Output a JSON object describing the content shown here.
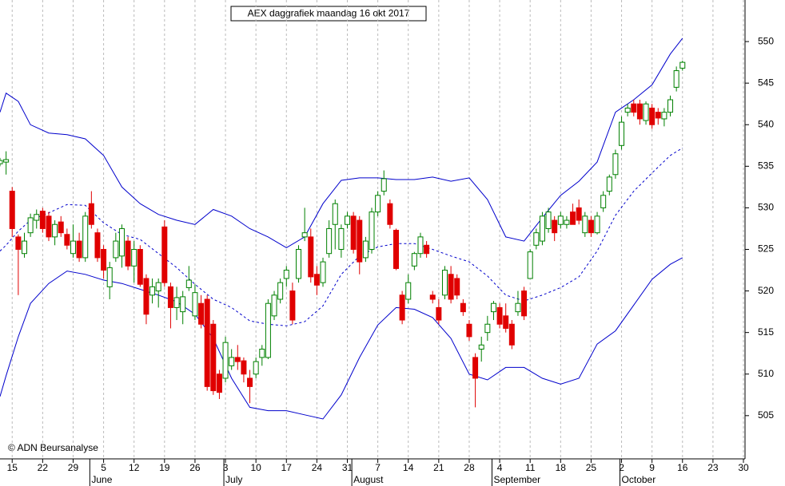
{
  "chart_data": {
    "type": "candlestick",
    "title": "AEX daggrafiek maandag 16 okt 2017",
    "annotation": "© ADN Beursanalyse",
    "up_color": "#008000",
    "down_color": "#e00000",
    "band_color": "#0000cc",
    "x": [
      "2017-05-11",
      "2017-05-12",
      "2017-05-15",
      "2017-05-16",
      "2017-05-17",
      "2017-05-18",
      "2017-05-19",
      "2017-05-22",
      "2017-05-23",
      "2017-05-24",
      "2017-05-25",
      "2017-05-26",
      "2017-05-29",
      "2017-05-30",
      "2017-05-31",
      "2017-06-01",
      "2017-06-02",
      "2017-06-05",
      "2017-06-06",
      "2017-06-07",
      "2017-06-08",
      "2017-06-09",
      "2017-06-12",
      "2017-06-13",
      "2017-06-14",
      "2017-06-15",
      "2017-06-16",
      "2017-06-19",
      "2017-06-20",
      "2017-06-21",
      "2017-06-22",
      "2017-06-23",
      "2017-06-26",
      "2017-06-27",
      "2017-06-28",
      "2017-06-29",
      "2017-06-30",
      "2017-07-03",
      "2017-07-04",
      "2017-07-05",
      "2017-07-06",
      "2017-07-07",
      "2017-07-10",
      "2017-07-11",
      "2017-07-12",
      "2017-07-13",
      "2017-07-14",
      "2017-07-17",
      "2017-07-18",
      "2017-07-19",
      "2017-07-20",
      "2017-07-21",
      "2017-07-24",
      "2017-07-25",
      "2017-07-26",
      "2017-07-27",
      "2017-07-28",
      "2017-07-31",
      "2017-08-01",
      "2017-08-02",
      "2017-08-03",
      "2017-08-04",
      "2017-08-07",
      "2017-08-08",
      "2017-08-09",
      "2017-08-10",
      "2017-08-11",
      "2017-08-14",
      "2017-08-15",
      "2017-08-16",
      "2017-08-17",
      "2017-08-18",
      "2017-08-21",
      "2017-08-22",
      "2017-08-23",
      "2017-08-24",
      "2017-08-25",
      "2017-08-28",
      "2017-08-29",
      "2017-08-30",
      "2017-08-31",
      "2017-09-01",
      "2017-09-04",
      "2017-09-05",
      "2017-09-06",
      "2017-09-07",
      "2017-09-08",
      "2017-09-11",
      "2017-09-12",
      "2017-09-13",
      "2017-09-14",
      "2017-09-15",
      "2017-09-18",
      "2017-09-19",
      "2017-09-20",
      "2017-09-21",
      "2017-09-22",
      "2017-09-25",
      "2017-09-26",
      "2017-09-27",
      "2017-09-28",
      "2017-09-29",
      "2017-10-02",
      "2017-10-03",
      "2017-10-04",
      "2017-10-05",
      "2017-10-06",
      "2017-10-09",
      "2017-10-10",
      "2017-10-11",
      "2017-10-12",
      "2017-10-13",
      "2017-10-16"
    ],
    "open": [
      535.3,
      535.5,
      532,
      526.5,
      524.5,
      527,
      528.5,
      529.6,
      529,
      526.5,
      528.3,
      526.8,
      524.5,
      526,
      524,
      530.5,
      527,
      525,
      520.5,
      524,
      524.2,
      526,
      523,
      525,
      521.5,
      519.5,
      520,
      527.7,
      520.5,
      518,
      517.5,
      520.4,
      517,
      518.5,
      519,
      516,
      510,
      509.5,
      511,
      512,
      511.6,
      509.5,
      510,
      512,
      512,
      517,
      519,
      521.5,
      520,
      521.5,
      526.5,
      526.5,
      522,
      521,
      524.5,
      528,
      525,
      528,
      529,
      528.5,
      524,
      525,
      529.5,
      532,
      530.5,
      527.3,
      519.5,
      519,
      523,
      524.5,
      525.5,
      519.5,
      518,
      519.5,
      522,
      521.5,
      518.5,
      516,
      512,
      513,
      515,
      517.5,
      518,
      517,
      516,
      517.5,
      520,
      521.5,
      525.5,
      526,
      527.5,
      528.5,
      528,
      528,
      529.5,
      530,
      527,
      528.5,
      527,
      530,
      532,
      534,
      537.5,
      541.5,
      542.5,
      542.5,
      540.5,
      542,
      541.5,
      540.7,
      541.5,
      544.5,
      546.8
    ],
    "high": [
      536,
      536.8,
      532.5,
      526.8,
      527,
      529.3,
      529.8,
      530,
      529.5,
      528.5,
      529,
      527.5,
      528,
      527,
      529.5,
      532,
      527.5,
      525.5,
      523.5,
      527,
      528,
      526.5,
      526,
      525.5,
      522,
      521.5,
      521.5,
      528.5,
      521,
      520.5,
      520,
      523,
      520.8,
      519.5,
      519.5,
      516.5,
      510.5,
      514.5,
      513,
      513.5,
      512,
      510.5,
      512,
      513.5,
      519,
      520,
      521.5,
      523,
      521,
      525.5,
      530,
      527.5,
      523,
      524,
      528.5,
      531,
      528,
      529.5,
      529.5,
      529,
      526.5,
      530,
      532,
      534.5,
      531,
      527.5,
      520,
      522,
      524.7,
      527,
      526,
      520,
      519,
      523,
      523,
      522,
      519,
      516.5,
      512.5,
      514.5,
      517,
      518.8,
      518.5,
      518.5,
      516.5,
      520,
      520.5,
      525,
      527.5,
      529.5,
      530,
      529,
      529.5,
      529,
      530.5,
      531,
      529.5,
      529,
      529.5,
      532,
      534,
      537,
      541,
      542.5,
      543,
      543,
      542.8,
      542.5,
      542,
      542,
      543.5,
      547,
      547.7
    ],
    "low": [
      535,
      534,
      526.5,
      519.5,
      524,
      526.5,
      527.5,
      527,
      526,
      525.5,
      526.5,
      525,
      524,
      523.5,
      523.5,
      527.5,
      523.5,
      521.5,
      519,
      523.5,
      522.8,
      522.5,
      521,
      520.5,
      516,
      518.5,
      518,
      520.5,
      515.5,
      516.5,
      516,
      520,
      516.5,
      515.5,
      508,
      507.5,
      507,
      509,
      510.5,
      510.5,
      509,
      506.5,
      509.5,
      511,
      511.8,
      516.5,
      518.5,
      520.5,
      516,
      521,
      526,
      521,
      519.5,
      520.5,
      524,
      525,
      524,
      527.5,
      524.5,
      522,
      523.5,
      524.5,
      529,
      531.5,
      527.5,
      522.5,
      516,
      518.5,
      522.5,
      524,
      524,
      518.5,
      516,
      519,
      518.5,
      519,
      517,
      514,
      506,
      511.5,
      514,
      516.5,
      515.5,
      515,
      513,
      517,
      516.5,
      521.5,
      525,
      525.5,
      527,
      526,
      527.5,
      527.5,
      528,
      528,
      526.5,
      526.5,
      526.8,
      529.5,
      531.5,
      533.5,
      537,
      541,
      541,
      540,
      540,
      539.5,
      540,
      539.8,
      541,
      544,
      546.5
    ],
    "close": [
      535.7,
      535.8,
      527.5,
      525,
      526,
      528.8,
      529.2,
      527.5,
      526.5,
      528,
      527,
      525.5,
      526,
      524,
      529,
      528,
      524,
      522.5,
      522.8,
      526,
      527.5,
      523,
      525,
      520.8,
      517.2,
      520.5,
      521,
      521,
      518,
      519.2,
      519.3,
      521.3,
      519.8,
      516,
      508.5,
      508,
      507.8,
      513.8,
      512,
      511.5,
      510,
      508.5,
      511.5,
      513,
      518.5,
      519.5,
      521,
      522.5,
      516.5,
      525,
      527,
      521.7,
      520.7,
      523.5,
      527.5,
      530.5,
      527.5,
      529,
      525,
      523.5,
      526,
      529.5,
      531.5,
      533.5,
      528,
      522.7,
      516.5,
      521,
      524.5,
      526.5,
      524.5,
      519,
      516.5,
      522.5,
      519,
      519.5,
      517.5,
      514.5,
      509.5,
      513.5,
      516,
      518.5,
      516,
      515.5,
      513.5,
      518.5,
      517,
      524.7,
      527,
      529,
      529.5,
      527,
      529,
      528.5,
      528,
      528.5,
      529,
      527,
      529,
      531.5,
      533.7,
      536.5,
      540.3,
      542,
      541.5,
      540.7,
      542.5,
      540,
      540.8,
      541.5,
      543,
      546.5,
      547.5
    ],
    "series": [
      {
        "color": "#0000cc",
        "dash": false,
        "x": [
          "2017-05-11",
          "2017-05-12",
          "2017-05-16",
          "2017-05-18",
          "2017-05-23",
          "2017-05-26",
          "2017-05-31",
          "2017-06-05",
          "2017-06-08",
          "2017-06-13",
          "2017-06-16",
          "2017-06-21",
          "2017-06-26",
          "2017-06-29",
          "2017-07-04",
          "2017-07-07",
          "2017-07-12",
          "2017-07-17",
          "2017-07-20",
          "2017-07-25",
          "2017-07-28",
          "2017-08-02",
          "2017-08-07",
          "2017-08-10",
          "2017-08-15",
          "2017-08-18",
          "2017-08-23",
          "2017-08-28",
          "2017-08-31",
          "2017-09-05",
          "2017-09-08",
          "2017-09-13",
          "2017-09-18",
          "2017-09-21",
          "2017-09-26",
          "2017-09-29",
          "2017-10-04",
          "2017-10-09",
          "2017-10-12",
          "2017-10-16"
        ],
        "values": [
          541.5,
          543.8,
          542.8,
          540,
          539,
          538.8,
          538.3,
          536.3,
          532.5,
          530.5,
          529.2,
          528.5,
          528,
          529.8,
          529,
          527.5,
          526.5,
          525.2,
          526.5,
          530.5,
          533.3,
          533.6,
          533.6,
          533.4,
          533.4,
          533.7,
          533.2,
          533.6,
          531,
          526.5,
          526,
          528.8,
          531.5,
          533.2,
          535.5,
          541.5,
          543,
          544.8,
          548.5,
          550.4
        ]
      },
      {
        "color": "#0000cc",
        "dash": true,
        "x": [
          "2017-05-11",
          "2017-05-12",
          "2017-05-16",
          "2017-05-18",
          "2017-05-23",
          "2017-05-26",
          "2017-05-31",
          "2017-06-05",
          "2017-06-08",
          "2017-06-13",
          "2017-06-16",
          "2017-06-21",
          "2017-06-26",
          "2017-06-29",
          "2017-07-04",
          "2017-07-07",
          "2017-07-12",
          "2017-07-17",
          "2017-07-20",
          "2017-07-25",
          "2017-07-28",
          "2017-08-02",
          "2017-08-07",
          "2017-08-10",
          "2017-08-15",
          "2017-08-18",
          "2017-08-23",
          "2017-08-28",
          "2017-08-31",
          "2017-09-05",
          "2017-09-08",
          "2017-09-13",
          "2017-09-18",
          "2017-09-21",
          "2017-09-26",
          "2017-09-29",
          "2017-10-04",
          "2017-10-09",
          "2017-10-12",
          "2017-10-16"
        ],
        "values": [
          524.8,
          525.5,
          527.2,
          528.5,
          529.4,
          530.4,
          530.3,
          528.2,
          526.8,
          526.2,
          524.5,
          522.8,
          520.8,
          519,
          518,
          516.4,
          516,
          515.8,
          516.3,
          518.2,
          522,
          524.2,
          525.3,
          525.7,
          525.7,
          525,
          524.2,
          523.5,
          521.8,
          519.5,
          518.8,
          519.5,
          520.4,
          521.7,
          524.8,
          529.1,
          532,
          534.2,
          536.3,
          537.2
        ]
      },
      {
        "color": "#0000cc",
        "dash": false,
        "x": [
          "2017-05-11",
          "2017-05-12",
          "2017-05-16",
          "2017-05-18",
          "2017-05-23",
          "2017-05-26",
          "2017-05-31",
          "2017-06-05",
          "2017-06-08",
          "2017-06-13",
          "2017-06-16",
          "2017-06-21",
          "2017-06-26",
          "2017-06-29",
          "2017-07-04",
          "2017-07-07",
          "2017-07-12",
          "2017-07-17",
          "2017-07-20",
          "2017-07-25",
          "2017-07-28",
          "2017-08-02",
          "2017-08-07",
          "2017-08-10",
          "2017-08-15",
          "2017-08-18",
          "2017-08-23",
          "2017-08-28",
          "2017-08-31",
          "2017-09-05",
          "2017-09-08",
          "2017-09-13",
          "2017-09-18",
          "2017-09-21",
          "2017-09-26",
          "2017-09-29",
          "2017-10-04",
          "2017-10-09",
          "2017-10-12",
          "2017-10-16"
        ],
        "values": [
          507.3,
          509.8,
          514.5,
          518.5,
          520.9,
          522.4,
          522,
          521.3,
          520.9,
          520.2,
          519.5,
          518.7,
          517.2,
          514.3,
          509.5,
          506,
          505.6,
          505.6,
          505.1,
          504.6,
          507.5,
          512,
          515.9,
          518,
          517.8,
          516.8,
          514.3,
          510,
          509.3,
          510.8,
          510.8,
          509.5,
          508.8,
          509.5,
          513.6,
          515.2,
          518.3,
          521.4,
          523.2,
          524
        ]
      }
    ],
    "xlim": [
      "2017-05-11",
      "2017-10-30"
    ],
    "xticks": [
      {
        "value": "2017-05-15",
        "label": "15"
      },
      {
        "value": "2017-05-22",
        "label": "22"
      },
      {
        "value": "2017-05-29",
        "label": "29"
      },
      {
        "value": "2017-06-05",
        "label": "5"
      },
      {
        "value": "2017-06-12",
        "label": "12"
      },
      {
        "value": "2017-06-19",
        "label": "19"
      },
      {
        "value": "2017-06-26",
        "label": "26"
      },
      {
        "value": "2017-07-03",
        "label": "3"
      },
      {
        "value": "2017-07-10",
        "label": "10"
      },
      {
        "value": "2017-07-17",
        "label": "17"
      },
      {
        "value": "2017-07-24",
        "label": "24"
      },
      {
        "value": "2017-07-31",
        "label": "31"
      },
      {
        "value": "2017-08-07",
        "label": "7"
      },
      {
        "value": "2017-08-14",
        "label": "14"
      },
      {
        "value": "2017-08-21",
        "label": "21"
      },
      {
        "value": "2017-08-28",
        "label": "28"
      },
      {
        "value": "2017-09-04",
        "label": "4"
      },
      {
        "value": "2017-09-11",
        "label": "11"
      },
      {
        "value": "2017-09-18",
        "label": "18"
      },
      {
        "value": "2017-09-25",
        "label": "25"
      },
      {
        "value": "2017-10-02",
        "label": "2"
      },
      {
        "value": "2017-10-09",
        "label": "9"
      },
      {
        "value": "2017-10-16",
        "label": "16"
      },
      {
        "value": "2017-10-23",
        "label": "23"
      },
      {
        "value": "2017-10-30",
        "label": "30"
      }
    ],
    "month_labels": [
      {
        "value": "2017-06-01",
        "label": "June"
      },
      {
        "value": "2017-07-03",
        "label": "July"
      },
      {
        "value": "2017-08-01",
        "label": "August"
      },
      {
        "value": "2017-09-01",
        "label": "September"
      },
      {
        "value": "2017-10-02",
        "label": "October"
      }
    ],
    "ylim": [
      499.8,
      555
    ],
    "yticks": [
      505,
      510,
      515,
      520,
      525,
      530,
      535,
      540,
      545,
      550
    ],
    "grid": true
  }
}
